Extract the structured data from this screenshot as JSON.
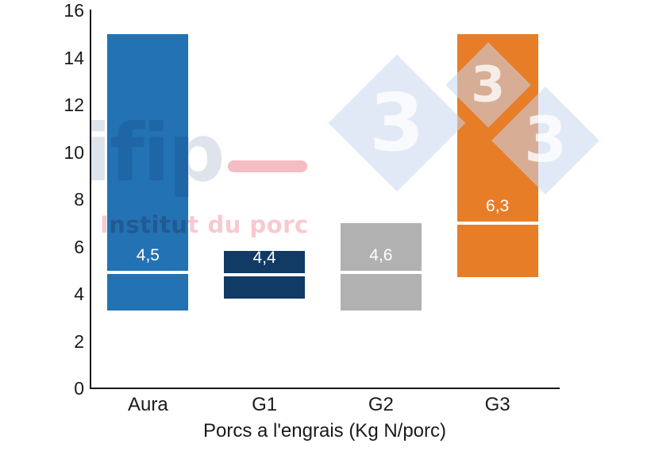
{
  "watermarks": {
    "ifip": {
      "wordmark": "ifip",
      "subtitle": "Institut du porc",
      "wordmark_color": "#dfe3ec",
      "dash_color": "#f6bcc3",
      "subtitle_color": "#f8c9d1"
    },
    "pig333": {
      "digit": "3",
      "diamond_color": "#dce6f2",
      "digit_color": "#ffffff"
    }
  },
  "chart_data": {
    "type": "bar",
    "subtype": "floating-range-bars-with-marker-line",
    "title": "",
    "xlabel": "Porcs a l'engrais (Kg N/porc)",
    "ylabel": "",
    "ylim": [
      0,
      16
    ],
    "yticks": [
      0,
      2,
      4,
      6,
      8,
      10,
      12,
      14,
      16
    ],
    "grid": false,
    "legend": "none",
    "categories": [
      "Aura",
      "G1",
      "G2",
      "G3"
    ],
    "bars": [
      {
        "category": "Aura",
        "low": 3.3,
        "high": 15.0,
        "marker": 4.9,
        "value": 4.5,
        "label": "4,5",
        "color": "#2272b4"
      },
      {
        "category": "G1",
        "low": 3.8,
        "high": 5.8,
        "marker": 4.8,
        "value": 4.4,
        "label": "4,4",
        "color": "#113a64"
      },
      {
        "category": "G2",
        "low": 3.3,
        "high": 7.0,
        "marker": 4.9,
        "value": 4.6,
        "label": "4,6",
        "color": "#b1b1b1"
      },
      {
        "category": "G3",
        "low": 4.7,
        "high": 15.0,
        "marker": 7.0,
        "value": 6.3,
        "label": "6,3",
        "color": "#e87d28"
      }
    ],
    "marker_line_color": "#ffffff",
    "value_label_color": "#ffffff",
    "axis_color": "#1a1a1a"
  }
}
